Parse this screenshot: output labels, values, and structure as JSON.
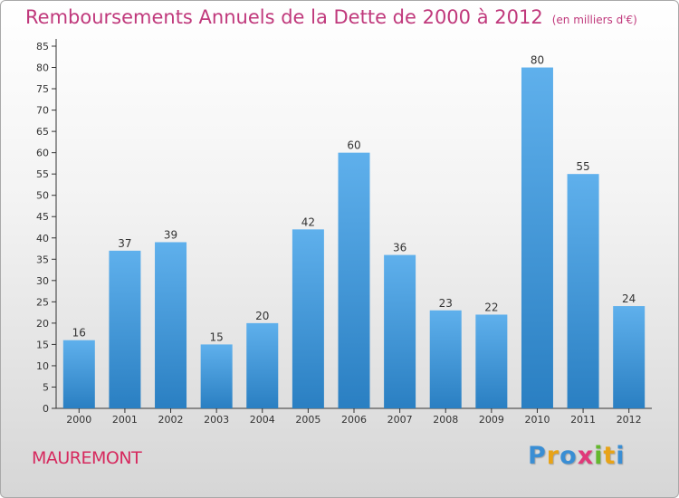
{
  "title": "Remboursements Annuels de la Dette de 2000 à 2012",
  "unit": "(en milliers d'€)",
  "commune": "MAUREMONT",
  "brand": {
    "text": "Proxiti",
    "colors": [
      "#3a8ed4",
      "#e8a317",
      "#3a8ed4",
      "#e03a7a",
      "#64b82e",
      "#e8a317",
      "#3a8ed4"
    ]
  },
  "colors": {
    "title": "#c0397c",
    "bar_top": "#5fb0ec",
    "bar_bottom": "#2a7fc2",
    "axis": "#333333"
  },
  "chart_data": {
    "type": "bar",
    "categories": [
      "2000",
      "2001",
      "2002",
      "2003",
      "2004",
      "2005",
      "2006",
      "2007",
      "2008",
      "2009",
      "2010",
      "2011",
      "2012"
    ],
    "values": [
      16,
      37,
      39,
      15,
      20,
      42,
      60,
      36,
      23,
      22,
      80,
      55,
      24
    ],
    "ylim": [
      0,
      85
    ],
    "yticks": [
      0,
      5,
      10,
      15,
      20,
      25,
      30,
      35,
      40,
      45,
      50,
      55,
      60,
      65,
      70,
      75,
      80,
      85
    ],
    "grid": false,
    "legend": "none"
  }
}
